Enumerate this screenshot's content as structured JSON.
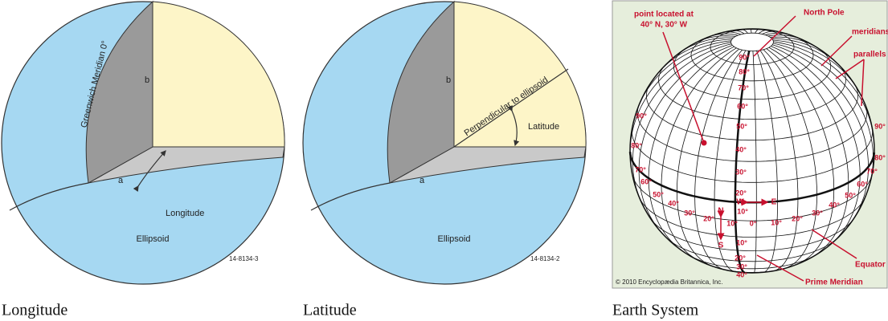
{
  "panels": [
    {
      "caption": "Longitude",
      "labels": {
        "meridian": "Greenwich Meridian 0°",
        "b": "b",
        "a": "a",
        "angle": "Longitude",
        "body": "Ellipsoid",
        "code": "14-8134-3"
      }
    },
    {
      "caption": "Latitude",
      "labels": {
        "b": "b",
        "a": "a",
        "normal": "Perpendicular to ellipsoid",
        "angle": "Latitude",
        "body": "Ellipsoid",
        "code": "14-8134-2"
      }
    },
    {
      "caption": "Earth System",
      "labels": {
        "point_1": "point located at",
        "point_2": "40° N, 30° W",
        "pole": "North Pole",
        "meridians": "meridians",
        "parallels": "parallels",
        "equator": "Equator",
        "prime": "Prime Meridian",
        "copyright": "© 2010 Encyclopædia Britannica, Inc.",
        "west": "W",
        "east": "E",
        "north": "N",
        "south": "S"
      },
      "lat_north": [
        "90°",
        "80°",
        "70°",
        "60°",
        "50°",
        "40°",
        "30°",
        "20°",
        "10°"
      ],
      "lat_left": [
        "90°",
        "80°",
        "70°",
        "60°",
        "50°",
        "40°",
        "30°",
        "20°",
        "10°"
      ],
      "lon": [
        "0°",
        "10°",
        "20°",
        "30°",
        "40°",
        "50°",
        "60°",
        "70°",
        "80°",
        "90°"
      ],
      "lat_south": [
        "10°",
        "20°",
        "30°",
        "40°"
      ]
    }
  ]
}
